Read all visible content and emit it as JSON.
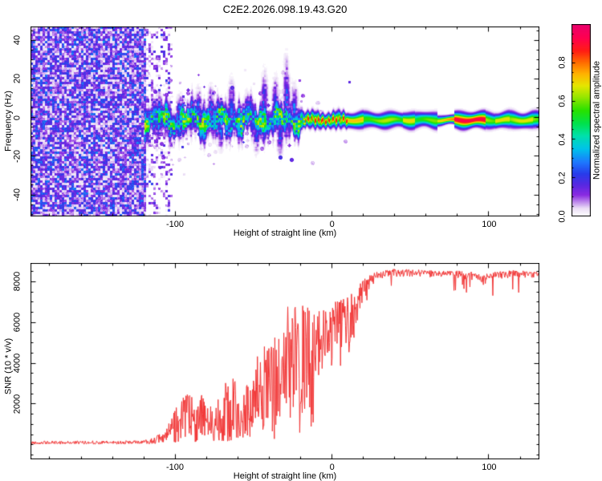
{
  "title": "C2E2.2026.098.19.43.G20",
  "colors": {
    "background": "#ffffff",
    "axis": "#000000",
    "snr_line": "#f23535"
  },
  "chart_data": [
    {
      "type": "heatmap",
      "panel": "spectrogram",
      "xlabel": "Height of straight line (km)",
      "ylabel": "Frequency (Hz)",
      "xlim": [
        -192,
        132
      ],
      "ylim": [
        -51,
        47
      ],
      "x_ticks": [
        [
          -100,
          "-100"
        ],
        [
          0,
          "0"
        ],
        [
          100,
          "100"
        ]
      ],
      "x_minor_step": 20,
      "y_ticks": [
        [
          40,
          "40"
        ],
        [
          20,
          "20"
        ],
        [
          0,
          "0"
        ],
        [
          -20,
          "-20"
        ],
        [
          -40,
          "-40"
        ]
      ],
      "y_minor_step": 5,
      "grid": false,
      "colorbar": {
        "label": "Normalized spectral amplitude",
        "range": [
          0,
          1
        ],
        "ticks": [
          [
            0,
            "0.0"
          ],
          [
            0.2,
            "0.2"
          ],
          [
            0.4,
            "0.4"
          ],
          [
            0.6,
            "0.6"
          ],
          [
            0.8,
            "0.8"
          ]
        ],
        "minor_step": 0.05,
        "palette": [
          [
            0,
            "#ffffff"
          ],
          [
            0.04,
            "#ecdff6"
          ],
          [
            0.11,
            "#8a2be2"
          ],
          [
            0.16,
            "#5a28e1"
          ],
          [
            0.22,
            "#283ceb"
          ],
          [
            0.28,
            "#1e78ff"
          ],
          [
            0.35,
            "#00c3eb"
          ],
          [
            0.42,
            "#00e1aa"
          ],
          [
            0.48,
            "#00e150"
          ],
          [
            0.55,
            "#28e100"
          ],
          [
            0.62,
            "#96e600"
          ],
          [
            0.68,
            "#e6e600"
          ],
          [
            0.74,
            "#ffb400"
          ],
          [
            0.8,
            "#ff6e00"
          ],
          [
            0.86,
            "#ff1e14"
          ],
          [
            0.93,
            "#ff0050"
          ],
          [
            1,
            "#eb006e"
          ]
        ]
      },
      "spectrogram": {
        "noise": {
          "dense_until_km": -118.5,
          "sparse_until_km": -102,
          "dense_max": 0.24,
          "sparse_max": 0.2,
          "scatter_dots": 650,
          "scatter_decay_km": 50
        },
        "band": {
          "start_km": -119.3,
          "center_hz": -1.3,
          "wide_until_km": -20,
          "wide_halfwidth_hz": 4.3,
          "narrow_halfwidth_hz": 2.05,
          "wide_amp_base": 0.4,
          "narrow_amp_base": 0.59
        },
        "hot_spots": [
          {
            "from_km": -18,
            "to_km": 10,
            "amp": 0.88,
            "style": "dotted"
          },
          {
            "from_km": 10,
            "to_km": 20,
            "amp": 0.73,
            "style": "solid"
          },
          {
            "from_km": 45,
            "to_km": 53,
            "amp": 0.7,
            "style": "solid"
          },
          {
            "from_km": 67,
            "to_km": 78,
            "amp": 0.82,
            "style": "pinch"
          },
          {
            "from_km": 78,
            "to_km": 98,
            "amp": 0.93,
            "style": "solid"
          },
          {
            "from_km": 104,
            "to_km": 113,
            "amp": 0.7,
            "style": "solid"
          },
          {
            "from_km": 119,
            "to_km": 128,
            "amp": 0.69,
            "style": "solid"
          }
        ],
        "pinch_width_factor": 0.6,
        "plumes": [
          [
            -110,
            9
          ],
          [
            -97,
            8
          ],
          [
            -85,
            10
          ],
          [
            -77,
            11
          ],
          [
            -71,
            -12
          ],
          [
            -64,
            13
          ],
          [
            -54,
            9
          ],
          [
            -48,
            -13
          ],
          [
            -43,
            16
          ],
          [
            -36,
            14
          ],
          [
            -33,
            -14
          ],
          [
            -29,
            21
          ],
          [
            -24,
            12
          ]
        ]
      }
    },
    {
      "type": "line",
      "panel": "snr",
      "xlabel": "Height of straight line (km)",
      "ylabel": "SNR (10 * v/v)",
      "xlim": [
        -192,
        132
      ],
      "ylim": [
        -700,
        8900
      ],
      "x_ticks": [
        [
          -100,
          "-100"
        ],
        [
          0,
          "0"
        ],
        [
          100,
          "100"
        ]
      ],
      "x_minor_step": 20,
      "y_ticks": [
        [
          2000,
          "2000"
        ],
        [
          4000,
          "4000"
        ],
        [
          6000,
          "6000"
        ],
        [
          8000,
          "8000"
        ]
      ],
      "y_minor_step": 500,
      "grid": false,
      "envelope": [
        [
          -192,
          40,
          190
        ],
        [
          -170,
          40,
          210
        ],
        [
          -150,
          40,
          200
        ],
        [
          -135,
          45,
          215
        ],
        [
          -122,
          50,
          230
        ],
        [
          -116,
          60,
          320
        ],
        [
          -110,
          70,
          520
        ],
        [
          -105,
          80,
          900
        ],
        [
          -100,
          90,
          1600
        ],
        [
          -96,
          110,
          2300
        ],
        [
          -90,
          130,
          2600
        ],
        [
          -84,
          170,
          2700
        ],
        [
          -79,
          150,
          2000
        ],
        [
          -74,
          140,
          2500
        ],
        [
          -68,
          180,
          3100
        ],
        [
          -62,
          220,
          3300
        ],
        [
          -57,
          220,
          2600
        ],
        [
          -52,
          260,
          3600
        ],
        [
          -47,
          300,
          4500
        ],
        [
          -42,
          250,
          5100
        ],
        [
          -38,
          150,
          5600
        ],
        [
          -34,
          90,
          5200
        ],
        [
          -30,
          60,
          6300
        ],
        [
          -26,
          60,
          6600
        ],
        [
          -22,
          60,
          7000
        ],
        [
          -18,
          60,
          7150
        ],
        [
          -14,
          120,
          6800
        ],
        [
          -11,
          400,
          6500
        ],
        [
          -8,
          1300,
          6600
        ],
        [
          -5,
          2000,
          6900
        ],
        [
          -2,
          1900,
          7000
        ],
        [
          1,
          2600,
          7100
        ],
        [
          4,
          3200,
          7200
        ],
        [
          8,
          3600,
          7250
        ],
        [
          12,
          4100,
          7400
        ],
        [
          16,
          5100,
          7800
        ],
        [
          20,
          6300,
          8100
        ],
        [
          24,
          7200,
          8300
        ],
        [
          28,
          7900,
          8450
        ],
        [
          34,
          8100,
          8550
        ],
        [
          45,
          8150,
          8600
        ],
        [
          60,
          8150,
          8550
        ],
        [
          75,
          8100,
          8500
        ],
        [
          88,
          8000,
          8480
        ],
        [
          97,
          7700,
          8300
        ],
        [
          103,
          8000,
          8450
        ],
        [
          115,
          8100,
          8550
        ],
        [
          125,
          8050,
          8500
        ],
        [
          132,
          8050,
          8450
        ]
      ]
    }
  ]
}
